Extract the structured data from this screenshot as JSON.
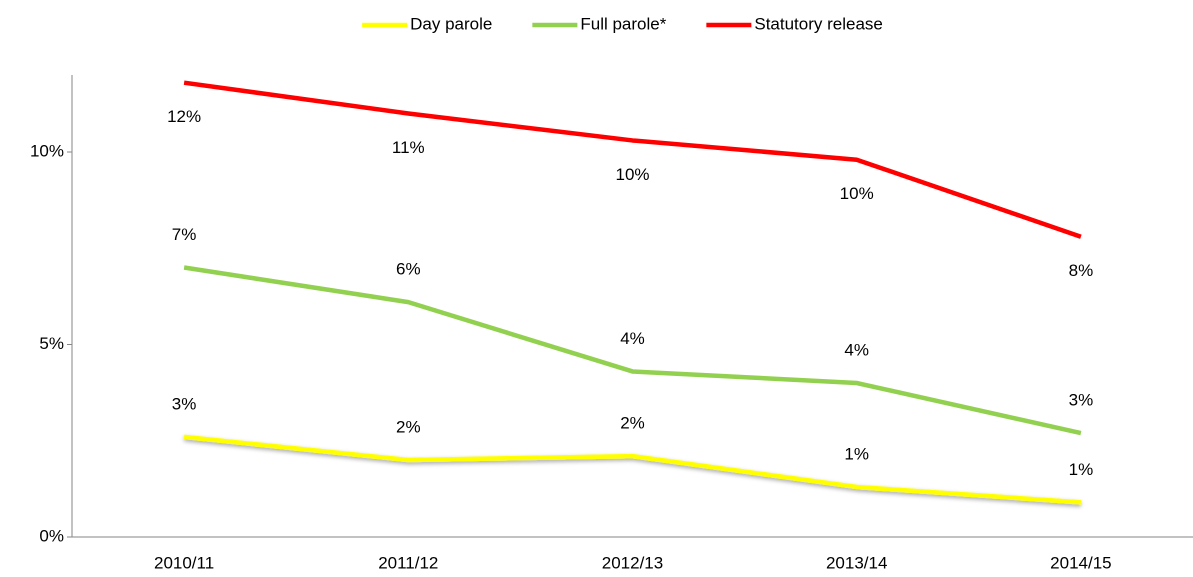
{
  "chart_data": {
    "type": "line",
    "categories": [
      "2010/11",
      "2011/12",
      "2012/13",
      "2013/14",
      "2014/15"
    ],
    "series": [
      {
        "name": "Day parole",
        "color": "#ffff00",
        "label_position": "above",
        "values": [
          2.6,
          2.0,
          2.1,
          1.3,
          0.9
        ],
        "value_labels": [
          "3%",
          "2%",
          "2%",
          "1%",
          "1%"
        ]
      },
      {
        "name": "Full parole*",
        "color": "#92d050",
        "label_position": "above",
        "values": [
          7.0,
          6.1,
          4.3,
          4.0,
          2.7
        ],
        "value_labels": [
          "7%",
          "6%",
          "4%",
          "4%",
          "3%"
        ]
      },
      {
        "name": "Statutory release",
        "color": "#ff0000",
        "label_position": "below",
        "values": [
          11.8,
          11.0,
          10.3,
          9.8,
          7.8
        ],
        "value_labels": [
          "12%",
          "11%",
          "10%",
          "10%",
          "8%"
        ]
      }
    ],
    "ylim": [
      0,
      12
    ],
    "yticks": [
      {
        "value": 0,
        "label": "0%"
      },
      {
        "value": 5,
        "label": "5%"
      },
      {
        "value": 10,
        "label": "10%"
      }
    ],
    "grid": false,
    "legend": "top"
  }
}
